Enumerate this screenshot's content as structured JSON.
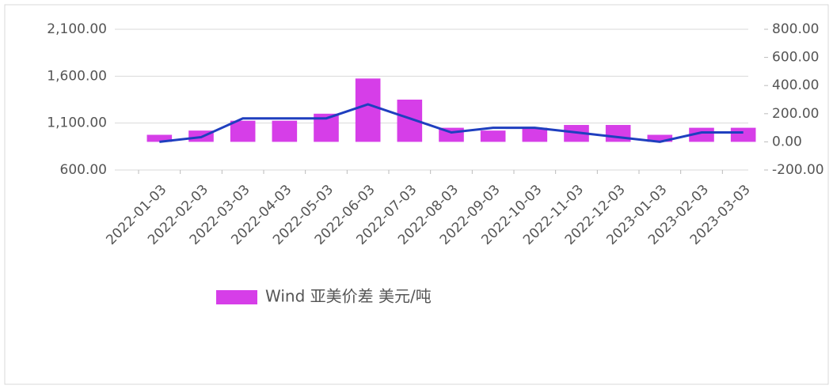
{
  "chart_data": {
    "type": "bar_line",
    "categories": [
      "2022-01-03",
      "2022-02-03",
      "2022-03-03",
      "2022-04-03",
      "2022-05-03",
      "2022-06-03",
      "2022-07-03",
      "2022-08-03",
      "2022-09-03",
      "2022-10-03",
      "2022-11-03",
      "2022-12-03",
      "2023-01-03",
      "2023-02-03",
      "2023-03-03"
    ],
    "series": [
      {
        "name": "Wind 亚美价差 美元/吨",
        "type": "bar",
        "axis": "y2",
        "color": "#d63ee8",
        "values": [
          50,
          80,
          150,
          150,
          200,
          450,
          300,
          100,
          80,
          100,
          120,
          120,
          50,
          100,
          100
        ]
      },
      {
        "type": "line",
        "axis": "y",
        "color": "#1f3fbf",
        "values": [
          900,
          950,
          1150,
          1150,
          1150,
          1300,
          1150,
          1000,
          1050,
          1050,
          1000,
          950,
          900,
          1000,
          1000
        ]
      }
    ],
    "ylim": [
      600,
      2100
    ],
    "yticks": [
      {
        "value": 600,
        "label": "600.00"
      },
      {
        "value": 1100,
        "label": "1,100.00"
      },
      {
        "value": 1600,
        "label": "1,600.00"
      },
      {
        "value": 2100,
        "label": "2,100.00"
      }
    ],
    "y2lim": [
      -200,
      800
    ],
    "y2ticks": [
      {
        "value": -200,
        "label": "-200.00"
      },
      {
        "value": 0,
        "label": "0.00"
      },
      {
        "value": 200,
        "label": "200.00"
      },
      {
        "value": 400,
        "label": "400.00"
      },
      {
        "value": 600,
        "label": "600.00"
      },
      {
        "value": 800,
        "label": "800.00"
      }
    ],
    "grid": true
  }
}
